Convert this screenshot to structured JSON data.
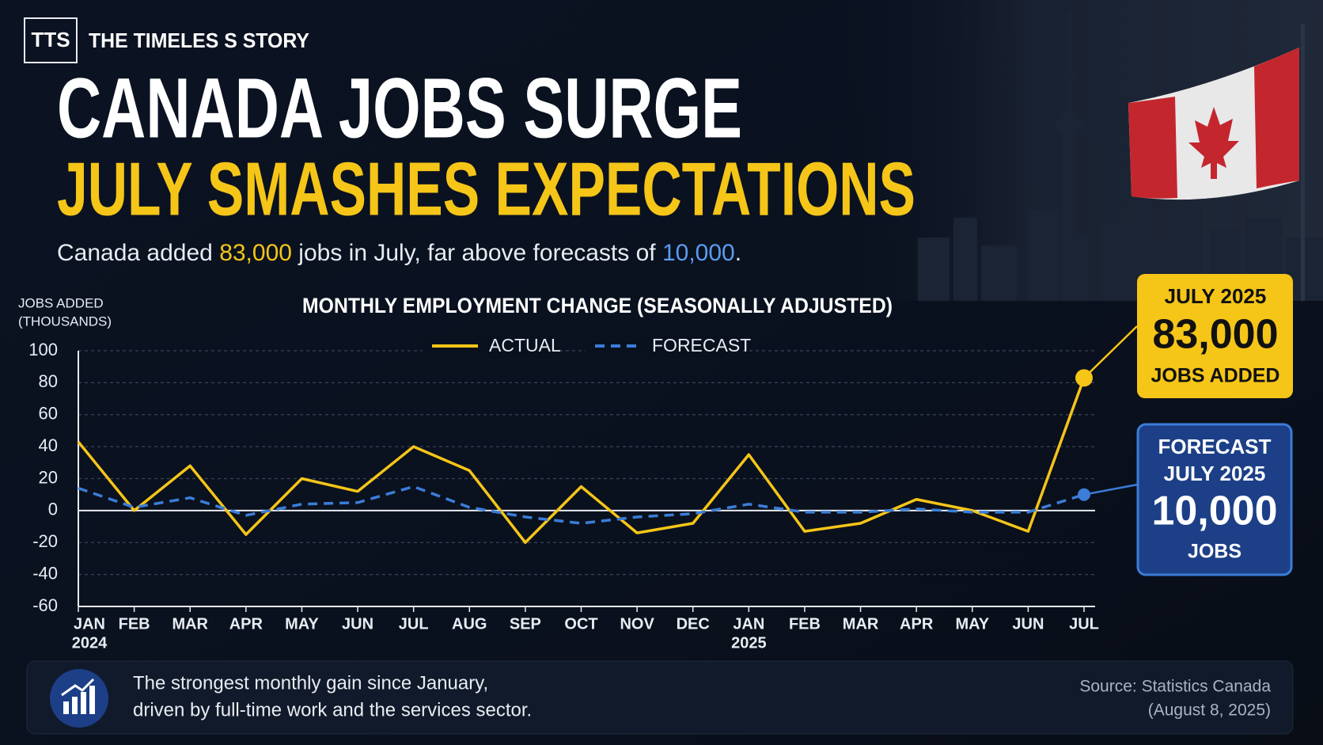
{
  "header": {
    "logo": "TTS",
    "brand": "THE TIMELES S STORY",
    "title": "CANADA JOBS SURGE",
    "subtitle": "JULY SMASHES EXPECTATIONS",
    "description": [
      "Canada added ",
      "83,000",
      " jobs in July, far above forecasts of ",
      "10,000",
      "."
    ]
  },
  "chart_data": {
    "type": "line",
    "title": "MONTHLY EMPLOYMENT CHANGE (SEASONALLY ADJUSTED)",
    "y_label": [
      "JOBS ADDED",
      "(THOUSANDS)"
    ],
    "categories": [
      "JAN",
      "FEB",
      "MAR",
      "APR",
      "MAY",
      "JUN",
      "JUL",
      "AUG",
      "SEP",
      "OCT",
      "NOV",
      "DEC",
      "JAN",
      "FEB",
      "MAR",
      "APR",
      "MAY",
      "JUN",
      "JUL"
    ],
    "year_labels": [
      "2024",
      null,
      null,
      null,
      null,
      null,
      null,
      null,
      null,
      null,
      null,
      null,
      "2025",
      null,
      null,
      null,
      null,
      null,
      null
    ],
    "series": [
      {
        "name": "ACTUAL",
        "color": "#f5c518",
        "dash": false,
        "values": [
          43,
          0,
          28,
          -15,
          20,
          12,
          40,
          25,
          -20,
          15,
          -14,
          -8,
          35,
          -13,
          -8,
          7,
          0,
          -13,
          83
        ],
        "value_labels": [
          null,
          null,
          null,
          null,
          null,
          null,
          null,
          null,
          null,
          null,
          null,
          null,
          null,
          null,
          null,
          null,
          null,
          null,
          "83,000"
        ]
      },
      {
        "name": "FORECAST",
        "color": "#3b7dd8",
        "dash": true,
        "values": [
          14,
          2,
          8,
          -3,
          4,
          5,
          15,
          2,
          -4,
          -8,
          -4,
          -2,
          4,
          -1,
          -1,
          1,
          -1,
          -1,
          10
        ],
        "value_labels": [
          null,
          null,
          null,
          null,
          null,
          null,
          null,
          null,
          null,
          null,
          null,
          null,
          null,
          null,
          null,
          null,
          null,
          null,
          "10,000"
        ]
      }
    ],
    "ylim": [
      -60,
      100
    ],
    "yticks": [
      -60,
      -40,
      -20,
      0,
      20,
      40,
      60,
      80,
      100
    ],
    "grid": true,
    "legend": "top",
    "callouts": {
      "actual": [
        "JULY 2025",
        "JOBS ADDED"
      ],
      "forecast": [
        "FORECAST",
        "JULY 2025",
        "JOBS"
      ]
    }
  },
  "footer": {
    "note": [
      "The strongest monthly gain since January,",
      "driven by full-time work and the services sector."
    ],
    "source": [
      "Source: Statistics Canada",
      "(August 8, 2025)"
    ]
  }
}
